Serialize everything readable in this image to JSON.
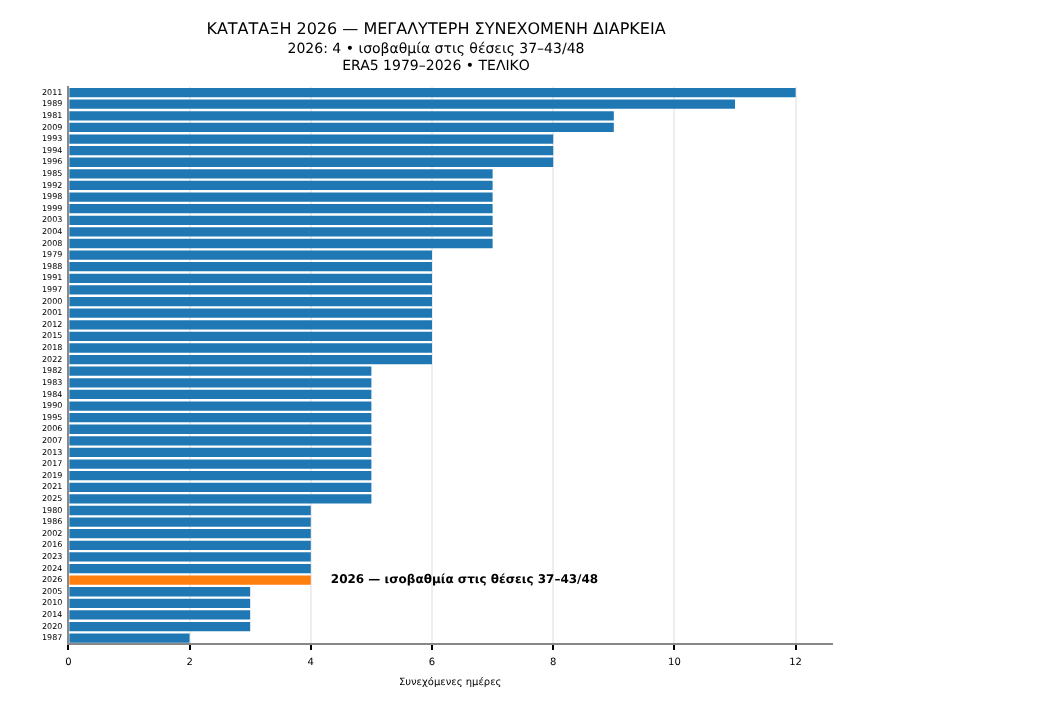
{
  "chart_data": {
    "type": "bar",
    "orientation": "horizontal",
    "title": "ΚΑΤΑΤΑΞΗ 2026 — ΜΕΓΑΛΥΤΕΡΗ ΣΥΝΕΧΟΜΕΝΗ ΔΙΑΡΚΕΙΑ",
    "subtitle": "2026: 4 • ισοβαθμία στις θέσεις 37–43/48\nERA5 1979–2026 • ΤΕΛΙΚΟ",
    "xlabel": "Συνεχόμενες ημέρες",
    "categories": [
      "2011",
      "1989",
      "1981",
      "2009",
      "1993",
      "1994",
      "1996",
      "1985",
      "1992",
      "1998",
      "1999",
      "2003",
      "2004",
      "2008",
      "1979",
      "1988",
      "1991",
      "1997",
      "2000",
      "2001",
      "2012",
      "2015",
      "2018",
      "2022",
      "1982",
      "1983",
      "1984",
      "1990",
      "1995",
      "2006",
      "2007",
      "2013",
      "2017",
      "2019",
      "2021",
      "2025",
      "1980",
      "1986",
      "2002",
      "2016",
      "2023",
      "2024",
      "2026",
      "2005",
      "2010",
      "2014",
      "2020",
      "1987"
    ],
    "values": [
      12,
      11,
      9,
      9,
      8,
      8,
      8,
      7,
      7,
      7,
      7,
      7,
      7,
      7,
      6,
      6,
      6,
      6,
      6,
      6,
      6,
      6,
      6,
      6,
      5,
      5,
      5,
      5,
      5,
      5,
      5,
      5,
      5,
      5,
      5,
      5,
      4,
      4,
      4,
      4,
      4,
      4,
      4,
      3,
      3,
      3,
      3,
      2
    ],
    "colors": [
      "#1f77b4",
      "#1f77b4",
      "#1f77b4",
      "#1f77b4",
      "#1f77b4",
      "#1f77b4",
      "#1f77b4",
      "#1f77b4",
      "#1f77b4",
      "#1f77b4",
      "#1f77b4",
      "#1f77b4",
      "#1f77b4",
      "#1f77b4",
      "#1f77b4",
      "#1f77b4",
      "#1f77b4",
      "#1f77b4",
      "#1f77b4",
      "#1f77b4",
      "#1f77b4",
      "#1f77b4",
      "#1f77b4",
      "#1f77b4",
      "#1f77b4",
      "#1f77b4",
      "#1f77b4",
      "#1f77b4",
      "#1f77b4",
      "#1f77b4",
      "#1f77b4",
      "#1f77b4",
      "#1f77b4",
      "#1f77b4",
      "#1f77b4",
      "#1f77b4",
      "#1f77b4",
      "#1f77b4",
      "#1f77b4",
      "#1f77b4",
      "#1f77b4",
      "#1f77b4",
      "#ff7f0e",
      "#1f77b4",
      "#1f77b4",
      "#1f77b4",
      "#1f77b4",
      "#1f77b4"
    ],
    "xlim": [
      0,
      12.6
    ],
    "xticks": [
      0,
      2,
      4,
      6,
      8,
      10,
      12
    ],
    "grid": "x",
    "annotations": [
      {
        "text": "2026 — ισοβαθμία στις θέσεις 37–43/48",
        "x": 4,
        "y": "2026"
      }
    ]
  }
}
